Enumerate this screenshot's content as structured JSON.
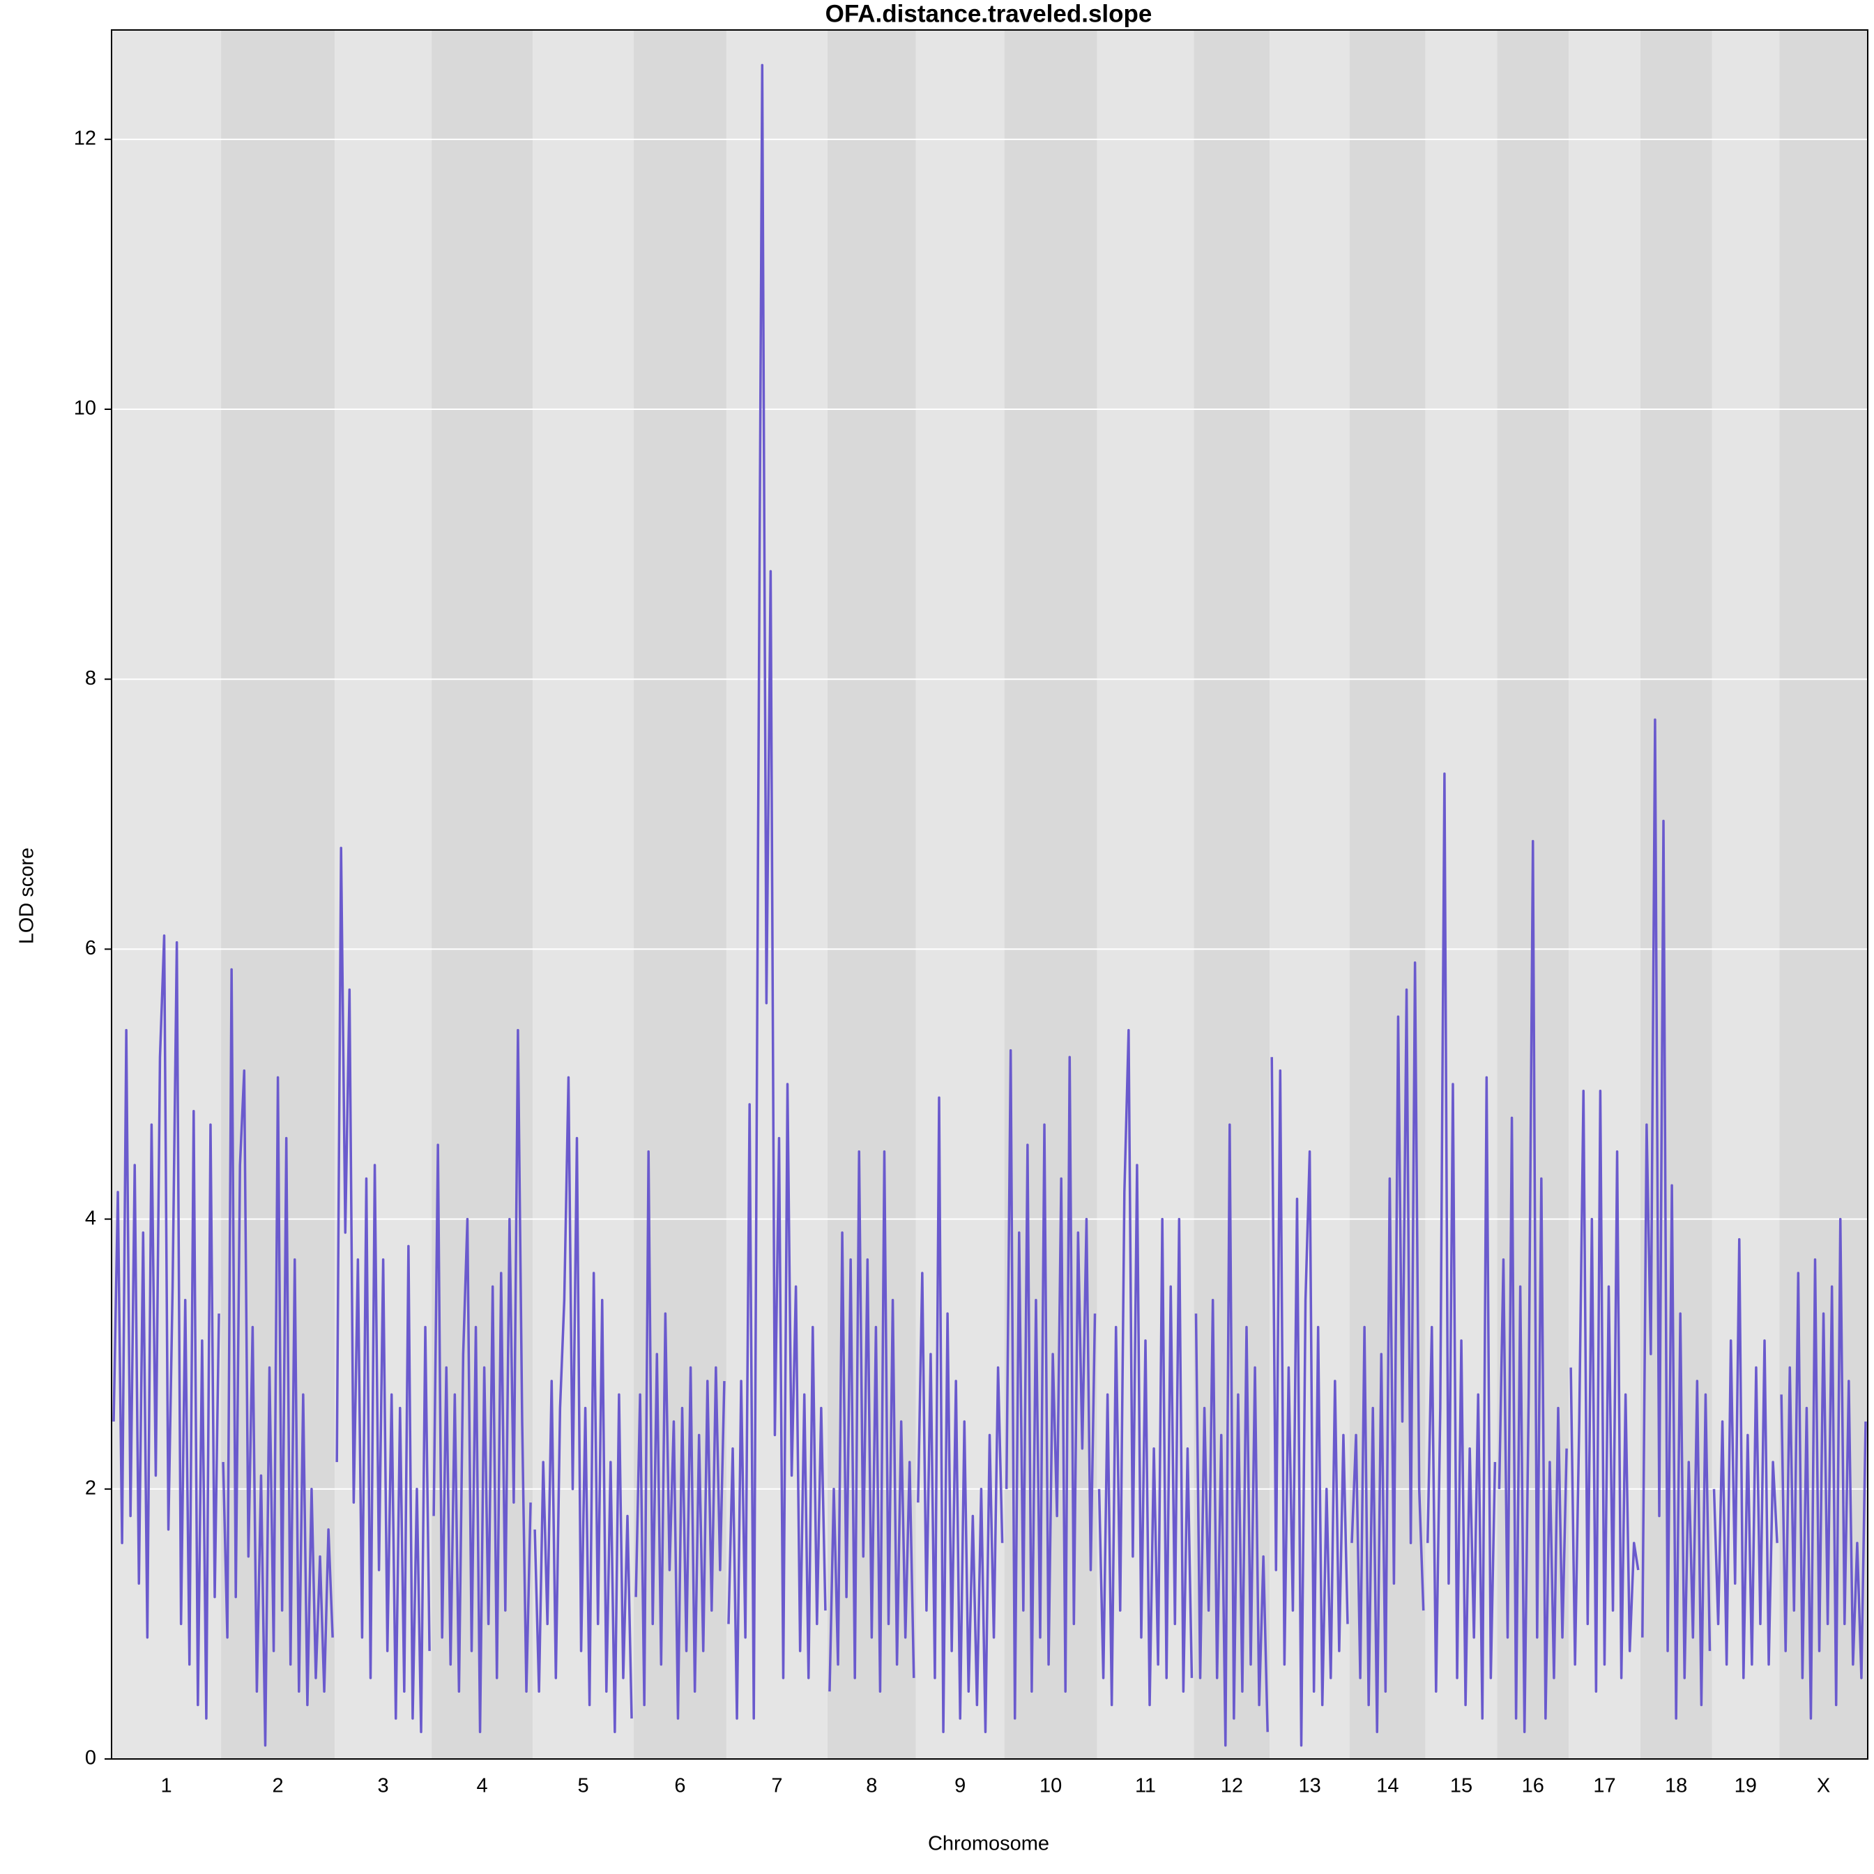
{
  "chart_data": {
    "type": "line",
    "title": "OFA.distance.traveled.slope",
    "xlabel": "Chromosome",
    "ylabel": "LOD score",
    "color": "#6a5acd",
    "band_colors": [
      "#e5e5e5",
      "#d9d9d9"
    ],
    "grid": true,
    "ylim": [
      0,
      12.81
    ],
    "yticks": [
      0,
      2,
      4,
      6,
      8,
      10,
      12
    ],
    "chromosomes": [
      {
        "label": "1",
        "values": [
          2.5,
          4.2,
          1.6,
          5.4,
          1.8,
          4.4,
          1.3,
          3.9,
          0.9,
          4.7,
          2.1,
          5.2,
          6.1,
          1.7,
          3.5,
          6.05,
          1.0,
          3.4,
          0.7,
          4.8,
          0.4,
          3.1,
          0.3,
          4.7,
          1.2,
          3.3
        ]
      },
      {
        "label": "2",
        "values": [
          2.2,
          0.9,
          5.85,
          1.2,
          4.4,
          5.1,
          1.5,
          3.2,
          0.5,
          2.1,
          0.1,
          2.9,
          0.8,
          5.05,
          1.1,
          4.6,
          0.7,
          3.7,
          0.5,
          2.7,
          0.4,
          2.0,
          0.6,
          1.5,
          0.5,
          1.7,
          0.9
        ]
      },
      {
        "label": "3",
        "values": [
          2.2,
          6.75,
          3.9,
          5.7,
          1.9,
          3.7,
          0.9,
          4.3,
          0.6,
          4.4,
          1.4,
          3.7,
          0.8,
          2.7,
          0.3,
          2.6,
          0.5,
          3.8,
          0.3,
          2.0,
          0.2,
          3.2,
          0.8
        ]
      },
      {
        "label": "4",
        "values": [
          1.8,
          4.55,
          0.9,
          2.9,
          0.7,
          2.7,
          0.5,
          3.0,
          4.0,
          0.8,
          3.2,
          0.2,
          2.9,
          1.0,
          3.5,
          0.6,
          3.6,
          1.1,
          4.0,
          1.9,
          5.4,
          2.5,
          0.5,
          1.9
        ]
      },
      {
        "label": "5",
        "values": [
          1.7,
          0.5,
          2.2,
          1.0,
          2.8,
          0.6,
          2.6,
          3.4,
          5.05,
          2.0,
          4.6,
          0.8,
          2.6,
          0.4,
          3.6,
          1.0,
          3.4,
          0.5,
          2.2,
          0.2,
          2.7,
          0.6,
          1.8,
          0.3
        ]
      },
      {
        "label": "6",
        "values": [
          1.2,
          2.7,
          0.4,
          4.5,
          1.0,
          3.0,
          0.7,
          3.3,
          1.4,
          2.5,
          0.3,
          2.6,
          0.8,
          2.9,
          0.5,
          2.4,
          0.8,
          2.8,
          1.1,
          2.9,
          1.4,
          2.8
        ]
      },
      {
        "label": "7",
        "values": [
          1.0,
          2.3,
          0.3,
          2.8,
          0.9,
          4.85,
          0.3,
          6.7,
          12.55,
          5.6,
          8.8,
          2.4,
          4.6,
          0.6,
          5.0,
          2.1,
          3.5,
          0.8,
          2.7,
          0.6,
          3.2,
          1.0,
          2.6,
          1.1
        ]
      },
      {
        "label": "8",
        "values": [
          0.5,
          2.0,
          0.7,
          3.9,
          1.2,
          3.7,
          0.6,
          4.5,
          1.5,
          3.7,
          0.9,
          3.2,
          0.5,
          4.5,
          1.0,
          3.4,
          0.7,
          2.5,
          0.9,
          2.2,
          0.6
        ]
      },
      {
        "label": "9",
        "values": [
          1.9,
          3.6,
          1.1,
          3.0,
          0.6,
          4.9,
          0.2,
          3.3,
          0.8,
          2.8,
          0.3,
          2.5,
          0.5,
          1.8,
          0.4,
          2.0,
          0.2,
          2.4,
          0.9,
          2.9,
          1.6
        ]
      },
      {
        "label": "10",
        "values": [
          2.0,
          5.25,
          0.3,
          3.9,
          1.1,
          4.55,
          0.5,
          3.4,
          0.9,
          4.7,
          0.7,
          3.0,
          1.8,
          4.3,
          0.5,
          5.2,
          1.0,
          3.9,
          2.3,
          4.0,
          1.4,
          3.3
        ]
      },
      {
        "label": "11",
        "values": [
          2.0,
          0.6,
          2.7,
          0.4,
          3.2,
          1.1,
          4.2,
          5.4,
          1.5,
          4.4,
          0.9,
          3.1,
          0.4,
          2.3,
          0.7,
          4.0,
          0.6,
          3.5,
          1.0,
          4.0,
          0.5,
          2.3,
          0.6
        ]
      },
      {
        "label": "12",
        "values": [
          3.3,
          0.6,
          2.6,
          1.1,
          3.4,
          0.6,
          2.4,
          0.1,
          4.7,
          0.3,
          2.7,
          0.5,
          3.2,
          0.7,
          2.9,
          0.4,
          1.5,
          0.2
        ]
      },
      {
        "label": "13",
        "values": [
          5.2,
          1.4,
          5.1,
          0.7,
          2.9,
          1.1,
          4.15,
          0.1,
          3.4,
          4.5,
          0.5,
          3.2,
          0.4,
          2.0,
          0.6,
          2.8,
          0.8,
          2.4,
          1.0
        ]
      },
      {
        "label": "14",
        "values": [
          1.6,
          2.4,
          0.6,
          3.2,
          0.4,
          2.6,
          0.2,
          3.0,
          0.5,
          4.3,
          1.3,
          5.5,
          2.5,
          5.7,
          1.6,
          5.9,
          2.0,
          1.1
        ]
      },
      {
        "label": "15",
        "values": [
          1.6,
          3.2,
          0.5,
          2.6,
          7.3,
          1.3,
          5.0,
          0.6,
          3.1,
          0.4,
          2.3,
          0.9,
          2.7,
          0.3,
          5.05,
          0.6,
          2.2
        ]
      },
      {
        "label": "16",
        "values": [
          2.0,
          3.7,
          0.9,
          4.75,
          0.3,
          3.5,
          0.2,
          2.7,
          6.8,
          0.9,
          4.3,
          0.3,
          2.2,
          0.6,
          2.6,
          0.9,
          2.3
        ]
      },
      {
        "label": "17",
        "values": [
          2.9,
          0.7,
          2.5,
          4.95,
          1.0,
          4.0,
          0.5,
          4.95,
          0.7,
          3.5,
          1.1,
          4.5,
          0.6,
          2.7,
          0.8,
          1.6,
          1.4
        ]
      },
      {
        "label": "18",
        "values": [
          0.9,
          4.7,
          3.0,
          7.7,
          1.8,
          6.95,
          0.8,
          4.25,
          0.3,
          3.3,
          0.6,
          2.2,
          0.9,
          2.8,
          0.4,
          2.7,
          0.8
        ]
      },
      {
        "label": "19",
        "values": [
          2.0,
          1.0,
          2.5,
          0.7,
          3.1,
          1.3,
          3.85,
          0.6,
          2.4,
          0.7,
          2.9,
          1.0,
          3.1,
          0.7,
          2.2,
          1.6
        ]
      },
      {
        "label": "X",
        "values": [
          2.7,
          0.8,
          2.9,
          1.1,
          3.6,
          0.6,
          2.6,
          0.3,
          3.7,
          0.8,
          3.3,
          1.0,
          3.5,
          0.4,
          4.0,
          1.0,
          2.8,
          0.7,
          1.6,
          0.6,
          2.5
        ]
      }
    ]
  }
}
